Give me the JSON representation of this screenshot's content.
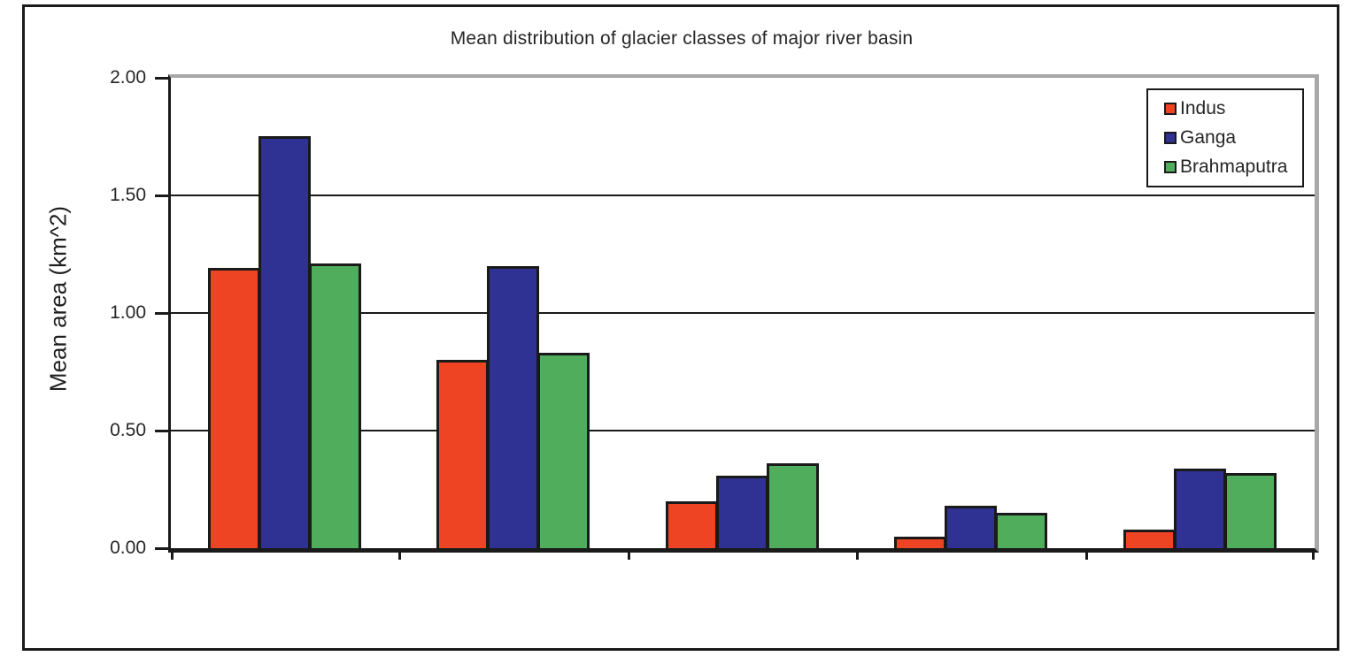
{
  "chart_data": {
    "type": "bar",
    "title": "Mean distribution of glacier classes of major river basin",
    "xlabel": "",
    "ylabel": "Mean area (km^2)",
    "ylim": [
      0,
      2.0
    ],
    "ytick_interval": 0.5,
    "ytick_labels": [
      "2.00",
      "1.50",
      "1.00",
      "0.50",
      "0.00"
    ],
    "categories": [
      "",
      "",
      "",
      "",
      ""
    ],
    "x_axis_labels_visible": false,
    "gridlines": "horizontal-black",
    "legend_position": "top-right",
    "series": [
      {
        "name": "Indus",
        "color": "#EF4423",
        "values": [
          1.19,
          0.8,
          0.2,
          0.05,
          0.08
        ]
      },
      {
        "name": "Ganga",
        "color": "#2F3293",
        "values": [
          1.75,
          1.2,
          0.31,
          0.18,
          0.34
        ]
      },
      {
        "name": "Brahmaputra",
        "color": "#4FAD5B",
        "values": [
          1.21,
          0.83,
          0.36,
          0.15,
          0.32
        ]
      }
    ]
  },
  "colors": {
    "ink": "#1a1a1a",
    "plot_border_gray": "#a8a8a8",
    "frame_border": "#1a1a1a",
    "background": "#ffffff"
  }
}
